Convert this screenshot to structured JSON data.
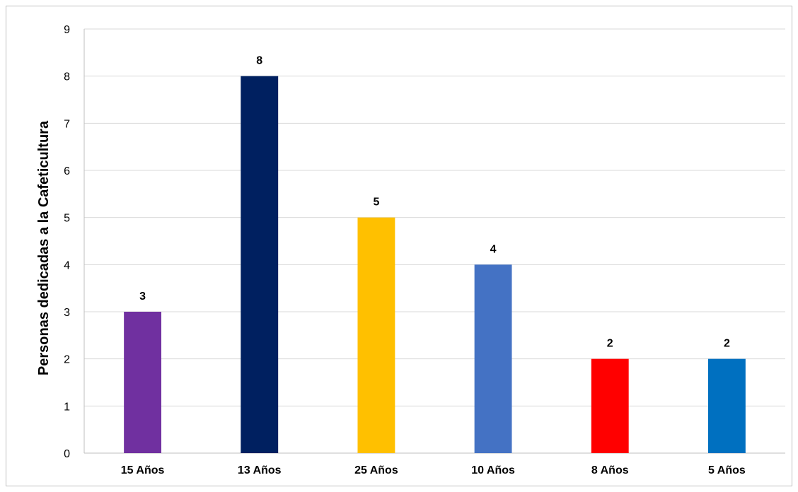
{
  "chart_data": {
    "type": "bar",
    "categories": [
      "15 Años",
      "13 Años",
      "25 Años",
      "10 Años",
      "8 Años",
      "5 Años"
    ],
    "values": [
      3,
      8,
      5,
      4,
      2,
      2
    ],
    "bar_colors": [
      "#7030A0",
      "#002060",
      "#FFC000",
      "#4472C4",
      "#FF0000",
      "#0070C0"
    ],
    "ylabel": "Personas dedicadas a la Cafeticultura",
    "xlabel": "",
    "ylim": [
      0,
      9
    ],
    "yticks": [
      0,
      1,
      2,
      3,
      4,
      5,
      6,
      7,
      8,
      9
    ],
    "grid": true,
    "data_labels": true
  }
}
